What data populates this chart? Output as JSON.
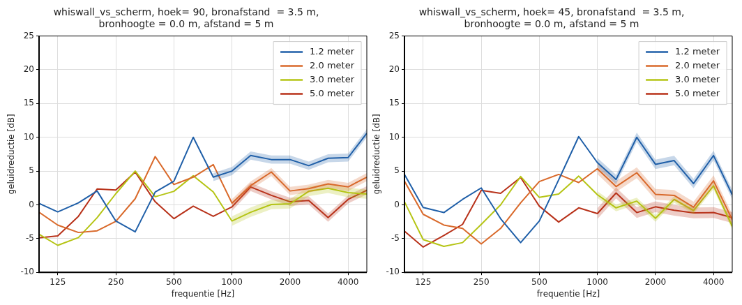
{
  "chart_data": [
    {
      "type": "line",
      "title": "whiswall_vs_scherm, hoek= 90, bronafstand  = 3.5 m,\nbronhoogte = 0.0 m, afstand = 5 m",
      "xlabel": "frequentie [Hz]",
      "ylabel": "geluidreductie [dB]",
      "log": "x",
      "grid": true,
      "legend": "top right",
      "x": [
        100,
        125,
        160,
        200,
        250,
        315,
        400,
        500,
        630,
        800,
        1000,
        1250,
        1600,
        2000,
        2500,
        3150,
        4000,
        5000
      ],
      "xlim": [
        100,
        5000
      ],
      "xticks": [
        125,
        250,
        500,
        1000,
        2000,
        4000
      ],
      "ylim": [
        -10,
        25
      ],
      "yticks": [
        -10,
        -5,
        0,
        5,
        10,
        15,
        20,
        25
      ],
      "series": [
        {
          "name": "1.2 meter",
          "color": "#1f5fa8",
          "values": [
            0.2,
            -1.05,
            0.3,
            2.05,
            -2.4,
            -4.0,
            1.9,
            3.5,
            10.0,
            4.1,
            5.0,
            7.3,
            6.7,
            6.7,
            5.8,
            6.9,
            7.0,
            10.6
          ],
          "lower": [
            null,
            null,
            null,
            null,
            null,
            null,
            null,
            null,
            null,
            3.5,
            4.4,
            6.7,
            6.1,
            6.1,
            5.2,
            6.3,
            6.4,
            10.0
          ],
          "upper": [
            null,
            null,
            null,
            null,
            null,
            null,
            null,
            null,
            null,
            4.7,
            5.6,
            7.9,
            7.3,
            7.3,
            6.4,
            7.5,
            7.6,
            11.2
          ]
        },
        {
          "name": "2.0 meter",
          "color": "#d9692a",
          "values": [
            -1.1,
            -3.0,
            -4.1,
            -3.85,
            -2.45,
            0.9,
            7.15,
            3.0,
            4.1,
            5.95,
            0.25,
            2.85,
            4.85,
            2.05,
            2.4,
            3.1,
            2.65,
            4.1
          ],
          "lower": [
            null,
            null,
            null,
            null,
            null,
            null,
            null,
            null,
            null,
            null,
            -0.35,
            2.25,
            4.25,
            1.45,
            1.8,
            2.5,
            2.05,
            3.5
          ],
          "upper": [
            null,
            null,
            null,
            null,
            null,
            null,
            null,
            null,
            null,
            null,
            0.85,
            3.45,
            5.45,
            2.65,
            3.0,
            3.7,
            3.25,
            4.7
          ]
        },
        {
          "name": "3.0 meter",
          "color": "#b5c414",
          "values": [
            -4.35,
            -6.0,
            -4.85,
            -1.9,
            1.65,
            5.0,
            1.2,
            2.0,
            4.3,
            1.9,
            -2.4,
            -1.1,
            0.05,
            0.15,
            2.0,
            2.45,
            1.8,
            1.6
          ],
          "lower": [
            null,
            null,
            null,
            null,
            null,
            null,
            null,
            null,
            null,
            null,
            -3.1,
            -1.8,
            -0.65,
            -0.55,
            1.3,
            1.75,
            1.1,
            0.9
          ],
          "upper": [
            null,
            null,
            null,
            null,
            null,
            null,
            null,
            null,
            null,
            null,
            -1.7,
            -0.4,
            0.75,
            0.85,
            2.7,
            3.15,
            2.5,
            2.3
          ]
        },
        {
          "name": "5.0 meter",
          "color": "#b8321a",
          "values": [
            -4.9,
            -4.6,
            -1.7,
            2.35,
            2.2,
            4.85,
            0.45,
            -2.05,
            -0.2,
            -1.7,
            -0.3,
            2.65,
            1.4,
            0.45,
            0.65,
            -1.9,
            0.8,
            2.15
          ],
          "lower": [
            null,
            null,
            null,
            null,
            null,
            null,
            null,
            null,
            null,
            null,
            -0.9,
            2.05,
            0.8,
            -0.15,
            0.05,
            -2.5,
            0.2,
            1.55
          ],
          "upper": [
            null,
            null,
            null,
            null,
            null,
            null,
            null,
            null,
            null,
            null,
            0.3,
            3.25,
            2.0,
            1.05,
            1.25,
            -1.3,
            1.4,
            2.75
          ]
        }
      ]
    },
    {
      "type": "line",
      "title": "whiswall_vs_scherm, hoek= 45, bronafstand  = 3.5 m,\nbronhoogte = 0.0 m, afstand = 5 m",
      "xlabel": "frequentie [Hz]",
      "ylabel": "geluidreductie [dB]",
      "log": "x",
      "grid": true,
      "legend": "top right",
      "x": [
        100,
        125,
        160,
        200,
        250,
        315,
        400,
        500,
        630,
        800,
        1000,
        1250,
        1600,
        2000,
        2500,
        3150,
        4000,
        5000
      ],
      "xlim": [
        100,
        5000
      ],
      "xticks": [
        125,
        250,
        500,
        1000,
        2000,
        4000
      ],
      "ylim": [
        -10,
        25
      ],
      "yticks": [
        -10,
        -5,
        0,
        5,
        10,
        15,
        20,
        25
      ],
      "series": [
        {
          "name": "1.2 meter",
          "color": "#1f5fa8",
          "values": [
            4.5,
            -0.4,
            -1.15,
            0.8,
            2.5,
            -2.05,
            -5.6,
            -2.4,
            3.7,
            10.1,
            6.25,
            3.75,
            10.0,
            6.0,
            6.55,
            3.15,
            7.3,
            1.5
          ],
          "lower": [
            null,
            null,
            null,
            null,
            null,
            null,
            null,
            null,
            null,
            null,
            5.55,
            3.05,
            9.3,
            5.3,
            5.85,
            2.45,
            6.6,
            0.8
          ],
          "upper": [
            null,
            null,
            null,
            null,
            null,
            null,
            null,
            null,
            null,
            null,
            6.95,
            4.45,
            10.7,
            6.7,
            7.25,
            3.85,
            8.0,
            2.2
          ]
        },
        {
          "name": "2.0 meter",
          "color": "#d9692a",
          "values": [
            3.5,
            -1.4,
            -3.0,
            -3.5,
            -5.8,
            -3.5,
            0.3,
            3.45,
            4.5,
            3.3,
            5.35,
            2.7,
            4.75,
            1.55,
            1.4,
            -0.35,
            3.55,
            -2.2
          ],
          "lower": [
            null,
            null,
            null,
            null,
            null,
            null,
            null,
            null,
            null,
            null,
            4.55,
            1.9,
            3.95,
            0.75,
            0.6,
            -1.15,
            2.75,
            -3.0
          ],
          "upper": [
            null,
            null,
            null,
            null,
            null,
            null,
            null,
            null,
            null,
            null,
            6.15,
            3.5,
            5.55,
            2.35,
            2.2,
            0.45,
            4.35,
            -1.4
          ]
        },
        {
          "name": "3.0 meter",
          "color": "#b5c414",
          "values": [
            0.45,
            -5.15,
            -6.15,
            -5.6,
            -2.9,
            0.0,
            4.2,
            1.1,
            1.6,
            4.25,
            1.5,
            -0.45,
            0.55,
            -2.0,
            0.8,
            -0.85,
            2.8,
            -3.2
          ],
          "lower": [
            null,
            null,
            null,
            null,
            null,
            null,
            null,
            null,
            null,
            null,
            1.0,
            -0.95,
            0.05,
            -2.5,
            0.3,
            -1.35,
            2.3,
            -3.7
          ],
          "upper": [
            null,
            null,
            null,
            null,
            null,
            null,
            null,
            null,
            null,
            null,
            2.0,
            0.05,
            1.05,
            -1.5,
            1.3,
            -0.35,
            3.3,
            -2.7
          ]
        },
        {
          "name": "5.0 meter",
          "color": "#b8321a",
          "values": [
            -3.9,
            -6.25,
            -4.55,
            -2.9,
            2.15,
            1.7,
            4.05,
            -0.2,
            -2.55,
            -0.45,
            -1.3,
            1.75,
            -1.15,
            -0.3,
            -0.8,
            -1.2,
            -1.15,
            -1.9
          ],
          "lower": [
            null,
            null,
            null,
            null,
            null,
            null,
            null,
            null,
            null,
            null,
            -2.1,
            0.95,
            -1.95,
            -1.1,
            -1.6,
            -2.0,
            -1.95,
            -2.7
          ],
          "upper": [
            null,
            null,
            null,
            null,
            null,
            null,
            null,
            null,
            null,
            null,
            -0.5,
            2.55,
            -0.35,
            0.5,
            0.0,
            -0.4,
            -0.35,
            -1.1
          ]
        }
      ]
    }
  ]
}
